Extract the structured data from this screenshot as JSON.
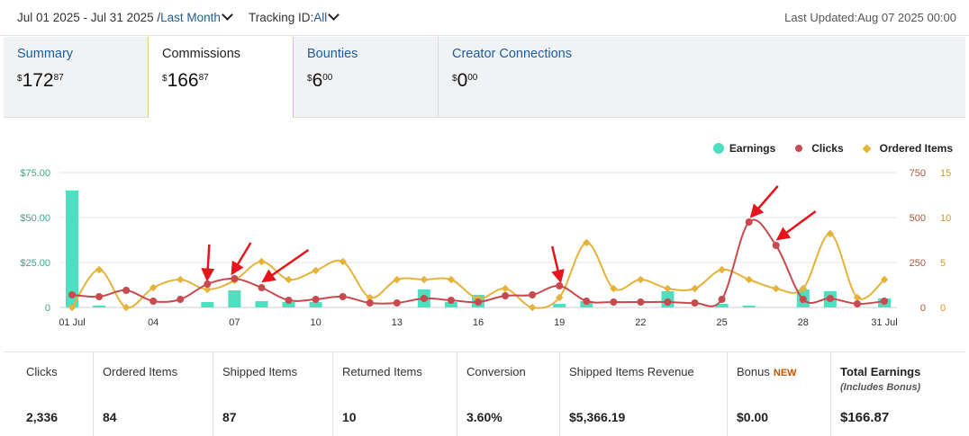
{
  "header": {
    "date_range": "Jul 01 2025 - Jul 31 2025 /",
    "range_preset": "Last Month",
    "tracking_label": "Tracking ID:",
    "tracking_value": "All",
    "last_updated": "Last Updated:Aug 07 2025 00:00"
  },
  "tabs": [
    {
      "name": "Summary",
      "currency": "$",
      "whole": "172",
      "cents": "87"
    },
    {
      "name": "Commissions",
      "currency": "$",
      "whole": "166",
      "cents": "87"
    },
    {
      "name": "Bounties",
      "currency": "$",
      "whole": "6",
      "cents": "00"
    },
    {
      "name": "Creator Connections",
      "currency": "$",
      "whole": "0",
      "cents": "00"
    }
  ],
  "legend": {
    "earnings": "Earnings",
    "clicks": "Clicks",
    "ordered_items": "Ordered Items"
  },
  "colors": {
    "earnings": "#4fdec0",
    "clicks": "#c8494e",
    "ordered_items": "#e6b33a",
    "link": "#1d5c99",
    "arrow": "#e8141b"
  },
  "chart_data": {
    "type": "bar+line",
    "x_tick_labels": [
      "01 Jul",
      "04",
      "07",
      "10",
      "13",
      "16",
      "19",
      "22",
      "25",
      "28",
      "31 Jul"
    ],
    "x_tick_days": [
      1,
      4,
      7,
      10,
      13,
      16,
      19,
      22,
      25,
      28,
      31
    ],
    "days": [
      1,
      2,
      3,
      4,
      5,
      6,
      7,
      8,
      9,
      10,
      11,
      12,
      13,
      14,
      15,
      16,
      17,
      18,
      19,
      20,
      21,
      22,
      23,
      24,
      25,
      26,
      27,
      28,
      29,
      30,
      31
    ],
    "left_axis": {
      "ticks": [
        "$75.00",
        "$50.00",
        "$25.00",
        "0"
      ],
      "ylim": [
        0,
        75
      ]
    },
    "right_axis_clicks": {
      "ticks": [
        "750",
        "500",
        "250",
        "0"
      ],
      "ylim": [
        0,
        750
      ]
    },
    "right_axis_items": {
      "ticks": [
        "15",
        "10",
        "5",
        "0"
      ],
      "ylim": [
        0,
        15
      ]
    },
    "series": [
      {
        "name": "Earnings",
        "kind": "bar",
        "axis": "left",
        "values": [
          65,
          1,
          0,
          0,
          0,
          3,
          9.5,
          3.5,
          3,
          3,
          0,
          0,
          0,
          10,
          3,
          7,
          0,
          0,
          2,
          3.5,
          0,
          0,
          9,
          0,
          2,
          1,
          0,
          10,
          9,
          0,
          5
        ]
      },
      {
        "name": "Clicks",
        "kind": "line",
        "axis": "right_clicks",
        "values": [
          70,
          60,
          95,
          35,
          45,
          130,
          160,
          110,
          40,
          45,
          60,
          25,
          25,
          50,
          40,
          30,
          65,
          70,
          120,
          35,
          30,
          30,
          30,
          25,
          45,
          475,
          345,
          45,
          50,
          20,
          35
        ]
      },
      {
        "name": "Ordered Items",
        "kind": "line",
        "axis": "right_items",
        "values": [
          0,
          4.2,
          0,
          2.2,
          3.1,
          2,
          3,
          5.1,
          3.1,
          4.1,
          5.1,
          1.1,
          3.1,
          3.1,
          3.1,
          1,
          2.1,
          0,
          1.1,
          7.2,
          2.1,
          3.1,
          2.1,
          2.1,
          4.2,
          3.1,
          2.1,
          2.1,
          8.2,
          1.1,
          3.1
        ]
      }
    ],
    "annotations": {
      "arrows_near_days": [
        6,
        7,
        8,
        19,
        26,
        27
      ]
    },
    "grid": "horizontal"
  },
  "stats": [
    {
      "label": "Clicks",
      "value": "2,336"
    },
    {
      "label": "Ordered Items",
      "value": "84"
    },
    {
      "label": "Shipped Items",
      "value": "87"
    },
    {
      "label": "Returned Items",
      "value": "10"
    },
    {
      "label": "Conversion",
      "value": "3.60%"
    },
    {
      "label": "Shipped Items Revenue",
      "value": "$5,366.19"
    },
    {
      "label": "Bonus",
      "badge": "NEW",
      "value": "$0.00"
    },
    {
      "label": "Total Earnings",
      "sublabel": "(Includes Bonus)",
      "value": "$166.87"
    }
  ]
}
